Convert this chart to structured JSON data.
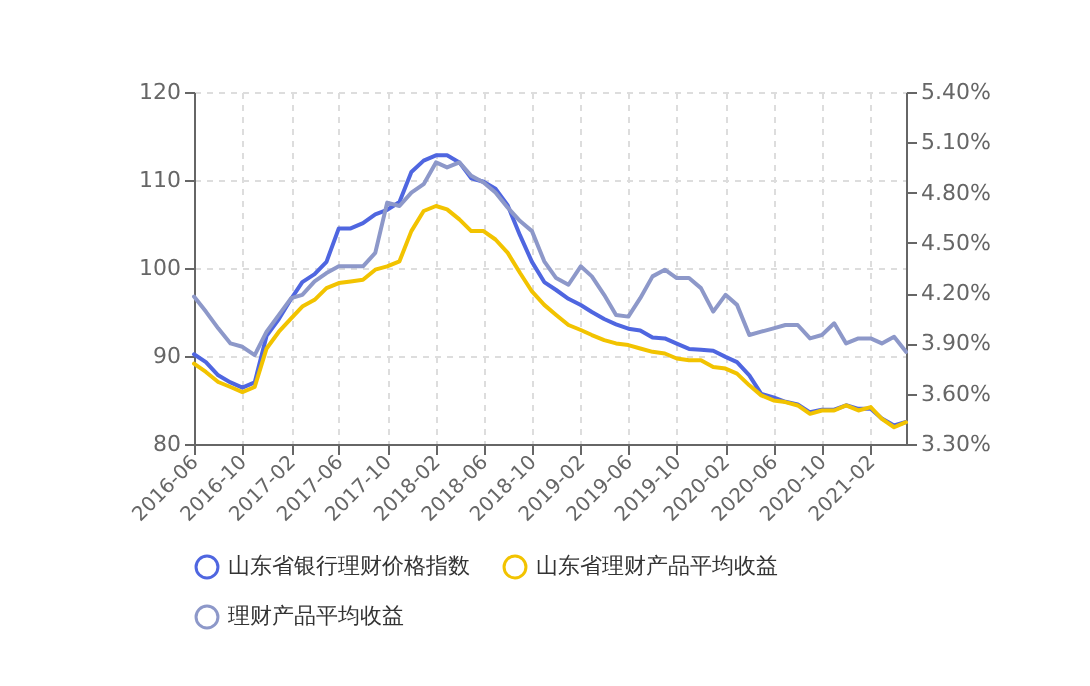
{
  "chart_data": {
    "type": "line",
    "x": [
      "2016-06",
      "2016-07",
      "2016-08",
      "2016-09",
      "2016-10",
      "2016-11",
      "2016-12",
      "2017-01",
      "2017-02",
      "2017-03",
      "2017-04",
      "2017-05",
      "2017-06",
      "2017-07",
      "2017-08",
      "2017-09",
      "2017-10",
      "2017-11",
      "2017-12",
      "2018-01",
      "2018-02",
      "2018-03",
      "2018-04",
      "2018-05",
      "2018-06",
      "2018-07",
      "2018-08",
      "2018-09",
      "2018-10",
      "2018-11",
      "2018-12",
      "2019-01",
      "2019-02",
      "2019-03",
      "2019-04",
      "2019-05",
      "2019-06",
      "2019-07",
      "2019-08",
      "2019-09",
      "2019-10",
      "2019-11",
      "2019-12",
      "2020-01",
      "2020-02",
      "2020-03",
      "2020-04",
      "2020-05",
      "2020-06",
      "2020-07",
      "2020-08",
      "2020-09",
      "2020-10",
      "2020-11",
      "2020-12",
      "2021-01",
      "2021-02",
      "2021-03",
      "2021-04",
      "2021-05"
    ],
    "series": [
      {
        "name": "山东省银行理财价格指数",
        "color": "#4f66e0",
        "values": [
          90.2,
          89.3,
          87.8,
          87.0,
          86.4,
          87.0,
          92.3,
          94.2,
          96.5,
          98.4,
          99.3,
          100.7,
          104.5,
          104.5,
          105.1,
          106.1,
          106.6,
          107.5,
          110.9,
          112.2,
          112.8,
          112.8,
          112.0,
          110.2,
          109.8,
          109.0,
          107.1,
          103.7,
          100.7,
          98.4,
          97.5,
          96.5,
          95.8,
          95.0,
          94.2,
          93.6,
          93.1,
          92.9,
          92.1,
          92.0,
          91.4,
          90.8,
          90.7,
          90.6,
          89.9,
          89.3,
          87.8,
          85.7,
          85.3,
          84.8,
          84.5,
          83.6,
          83.9,
          83.9,
          84.4,
          84.0,
          84.0,
          82.9,
          82.1,
          82.5
        ]
      },
      {
        "name": "山东省理财产品平均收益",
        "color": "#f2c300",
        "axis": "y2",
        "values": [
          3.78,
          3.73,
          3.67,
          3.64,
          3.61,
          3.64,
          3.87,
          3.97,
          4.05,
          4.12,
          4.16,
          4.23,
          4.26,
          4.27,
          4.28,
          4.34,
          4.36,
          4.39,
          4.57,
          4.69,
          4.72,
          4.7,
          4.64,
          4.57,
          4.57,
          4.52,
          4.44,
          4.32,
          4.21,
          4.13,
          4.07,
          4.01,
          3.98,
          3.95,
          3.92,
          3.9,
          3.89,
          3.87,
          3.85,
          3.84,
          3.81,
          3.8,
          3.8,
          3.76,
          3.75,
          3.72,
          3.65,
          3.59,
          3.56,
          3.55,
          3.53,
          3.48,
          3.5,
          3.5,
          3.53,
          3.5,
          3.52,
          3.45,
          3.4,
          3.43
        ]
      },
      {
        "name": "理财产品平均收益",
        "color": "#8d98c9",
        "axis": "y2",
        "values": [
          4.18,
          4.09,
          3.99,
          3.9,
          3.88,
          3.83,
          3.97,
          4.07,
          4.17,
          4.19,
          4.27,
          4.32,
          4.36,
          4.36,
          4.36,
          4.44,
          4.74,
          4.72,
          4.8,
          4.85,
          4.98,
          4.95,
          4.98,
          4.9,
          4.86,
          4.8,
          4.71,
          4.63,
          4.57,
          4.39,
          4.29,
          4.25,
          4.36,
          4.3,
          4.19,
          4.07,
          4.06,
          4.17,
          4.3,
          4.34,
          4.29,
          4.29,
          4.23,
          4.09,
          4.19,
          4.13,
          3.95,
          3.97,
          3.99,
          4.01,
          4.01,
          3.93,
          3.95,
          4.02,
          3.9,
          3.93,
          3.93,
          3.9,
          3.94,
          3.85
        ]
      }
    ],
    "xlim": [
      "2016-06",
      "2021-05"
    ],
    "xticks": [
      "2016-06",
      "2016-10",
      "2017-02",
      "2017-06",
      "2017-10",
      "2018-02",
      "2018-06",
      "2018-10",
      "2019-02",
      "2019-06",
      "2019-10",
      "2020-02",
      "2020-06",
      "2020-10",
      "2021-02"
    ],
    "ylim": [
      80,
      120
    ],
    "yticks": [
      80,
      90,
      100,
      110,
      120
    ],
    "y2lim": [
      3.3,
      5.4
    ],
    "y2ticks": [
      {
        "value": 3.3,
        "label": "3.30%"
      },
      {
        "value": 3.6,
        "label": "3.60%"
      },
      {
        "value": 3.9,
        "label": "3.90%"
      },
      {
        "value": 4.2,
        "label": "4.20%"
      },
      {
        "value": 4.5,
        "label": "4.50%"
      },
      {
        "value": 4.8,
        "label": "4.80%"
      },
      {
        "value": 5.1,
        "label": "5.10%"
      },
      {
        "value": 5.4,
        "label": "5.40%"
      }
    ],
    "grid": true,
    "legend": "bottom"
  }
}
